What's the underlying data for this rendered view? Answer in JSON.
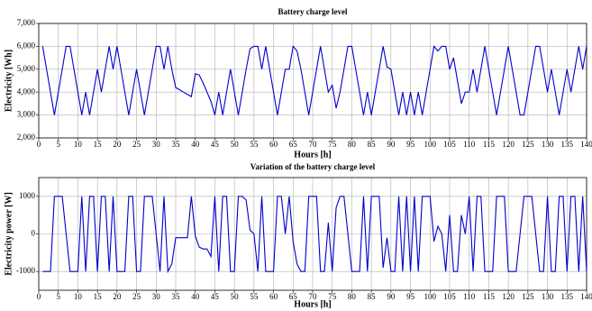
{
  "chart_data": [
    {
      "type": "line",
      "title": "Battery charge level",
      "xlabel": "Hours [h]",
      "ylabel": "Electricity [Wh]",
      "x": [
        1,
        2,
        3,
        4,
        5,
        6,
        7,
        8,
        9,
        10,
        11,
        12,
        13,
        14,
        15,
        16,
        17,
        18,
        19,
        20,
        21,
        22,
        23,
        24,
        25,
        26,
        27,
        28,
        29,
        30,
        31,
        32,
        33,
        34,
        35,
        36,
        37,
        38,
        39,
        40,
        41,
        42,
        43,
        44,
        45,
        46,
        47,
        48,
        49,
        50,
        51,
        52,
        53,
        54,
        55,
        56,
        57,
        58,
        59,
        60,
        61,
        62,
        63,
        64,
        65,
        66,
        67,
        68,
        69,
        70,
        71,
        72,
        73,
        74,
        75,
        76,
        77,
        78,
        79,
        80,
        81,
        82,
        83,
        84,
        85,
        86,
        87,
        88,
        89,
        90,
        91,
        92,
        93,
        94,
        95,
        96,
        97,
        98,
        99,
        100,
        101,
        102,
        103,
        104,
        105,
        106,
        107,
        108,
        109,
        110,
        111,
        112,
        113,
        114,
        115,
        116,
        117,
        118,
        119,
        120,
        121,
        122,
        123,
        124,
        125,
        126,
        127,
        128,
        129,
        130,
        131,
        132,
        133,
        134,
        135,
        136,
        137,
        138,
        139,
        140
      ],
      "series": [
        {
          "color": "#0000cc",
          "values": [
            6000,
            5000,
            4000,
            3000,
            4000,
            5000,
            6000,
            6000,
            5000,
            4000,
            3000,
            4000,
            3000,
            4000,
            5000,
            4000,
            5000,
            6000,
            5000,
            6000,
            5000,
            4000,
            3000,
            4000,
            5000,
            4000,
            3000,
            4000,
            5000,
            6000,
            6000,
            5000,
            6000,
            5000,
            4200,
            4100,
            4000,
            3900,
            3800,
            4800,
            4750,
            4400,
            4000,
            3600,
            3000,
            4000,
            3000,
            4000,
            5000,
            4000,
            3000,
            4000,
            5000,
            5900,
            6000,
            6000,
            5000,
            6000,
            5000,
            4000,
            3000,
            4000,
            5000,
            5000,
            6000,
            5800,
            5000,
            4000,
            3000,
            4000,
            5000,
            6000,
            5000,
            4000,
            4300,
            3300,
            4000,
            5000,
            6000,
            6000,
            5000,
            4000,
            3000,
            4000,
            3000,
            4000,
            5000,
            6000,
            5100,
            5000,
            4000,
            3000,
            4000,
            3000,
            4000,
            3000,
            4000,
            3000,
            4000,
            5000,
            6000,
            5800,
            6000,
            6000,
            5000,
            5500,
            4500,
            3500,
            4000,
            4000,
            5000,
            4000,
            5000,
            6000,
            5000,
            4000,
            3000,
            4000,
            5000,
            6000,
            5000,
            4000,
            3000,
            3000,
            4000,
            5000,
            6000,
            6000,
            5000,
            4000,
            5000,
            4000,
            3000,
            4000,
            5000,
            4000,
            5000,
            6000,
            5000,
            6000
          ]
        }
      ],
      "xlim": [
        0,
        140
      ],
      "xticks": [
        0,
        5,
        10,
        15,
        20,
        25,
        30,
        35,
        40,
        45,
        50,
        55,
        60,
        65,
        70,
        75,
        80,
        85,
        90,
        95,
        100,
        105,
        110,
        115,
        120,
        125,
        130,
        135,
        140
      ],
      "ylim": [
        2000,
        7000
      ],
      "yticks": [
        {
          "value": 2000,
          "label": "2,000"
        },
        {
          "value": 3000,
          "label": "3,000"
        },
        {
          "value": 4000,
          "label": "4,000"
        },
        {
          "value": 5000,
          "label": "5,000"
        },
        {
          "value": 6000,
          "label": "6,000"
        },
        {
          "value": 7000,
          "label": "7,000"
        }
      ],
      "grid": true
    },
    {
      "type": "line",
      "title": "Variation of the battery charge level",
      "xlabel": "Hours [h]",
      "ylabel": "Electricity power [W]",
      "x": [
        1,
        2,
        3,
        4,
        5,
        6,
        7,
        8,
        9,
        10,
        11,
        12,
        13,
        14,
        15,
        16,
        17,
        18,
        19,
        20,
        21,
        22,
        23,
        24,
        25,
        26,
        27,
        28,
        29,
        30,
        31,
        32,
        33,
        34,
        35,
        36,
        37,
        38,
        39,
        40,
        41,
        42,
        43,
        44,
        45,
        46,
        47,
        48,
        49,
        50,
        51,
        52,
        53,
        54,
        55,
        56,
        57,
        58,
        59,
        60,
        61,
        62,
        63,
        64,
        65,
        66,
        67,
        68,
        69,
        70,
        71,
        72,
        73,
        74,
        75,
        76,
        77,
        78,
        79,
        80,
        81,
        82,
        83,
        84,
        85,
        86,
        87,
        88,
        89,
        90,
        91,
        92,
        93,
        94,
        95,
        96,
        97,
        98,
        99,
        100,
        101,
        102,
        103,
        104,
        105,
        106,
        107,
        108,
        109,
        110,
        111,
        112,
        113,
        114,
        115,
        116,
        117,
        118,
        119,
        120,
        121,
        122,
        123,
        124,
        125,
        126,
        127,
        128,
        129,
        130,
        131,
        132,
        133,
        134,
        135,
        136,
        137,
        138,
        139,
        140
      ],
      "series": [
        {
          "color": "#0000cc",
          "values": [
            -1000,
            -1000,
            -1000,
            1000,
            1000,
            1000,
            0,
            -1000,
            -1000,
            -1000,
            1000,
            -1000,
            1000,
            1000,
            -1000,
            1000,
            1000,
            -1000,
            1000,
            -1000,
            -1000,
            -1000,
            1000,
            1000,
            -1000,
            -1000,
            1000,
            1000,
            1000,
            0,
            -1000,
            1000,
            -1000,
            -800,
            -100,
            -100,
            -100,
            -100,
            1000,
            -50,
            -350,
            -400,
            -400,
            -600,
            1000,
            -1000,
            1000,
            1000,
            -1000,
            -1000,
            1000,
            1000,
            900,
            100,
            0,
            -1000,
            1000,
            -1000,
            -1000,
            -1000,
            1000,
            1000,
            0,
            1000,
            -200,
            -800,
            -1000,
            -1000,
            1000,
            1000,
            1000,
            -1000,
            -1000,
            300,
            -1000,
            700,
            1000,
            1000,
            0,
            -1000,
            -1000,
            -1000,
            1000,
            -1000,
            1000,
            1000,
            1000,
            -900,
            -100,
            -1000,
            -1000,
            1000,
            -1000,
            1000,
            -1000,
            1000,
            -1000,
            1000,
            1000,
            1000,
            -200,
            200,
            0,
            -1000,
            500,
            -1000,
            -1000,
            500,
            0,
            1000,
            -1000,
            1000,
            1000,
            -1000,
            -1000,
            -1000,
            1000,
            1000,
            1000,
            -1000,
            -1000,
            -1000,
            0,
            1000,
            1000,
            1000,
            0,
            -1000,
            -1000,
            1000,
            -1000,
            -1000,
            1000,
            1000,
            -1000,
            1000,
            1000,
            -1000,
            1000,
            -1000
          ]
        }
      ],
      "xlim": [
        0,
        140
      ],
      "xticks": [
        0,
        5,
        10,
        15,
        20,
        25,
        30,
        35,
        40,
        45,
        50,
        55,
        60,
        65,
        70,
        75,
        80,
        85,
        90,
        95,
        100,
        105,
        110,
        115,
        120,
        125,
        130,
        135,
        140
      ],
      "ylim": [
        -1500,
        1500
      ],
      "yticks": [
        -1000,
        0,
        1000
      ],
      "grid": true
    }
  ]
}
